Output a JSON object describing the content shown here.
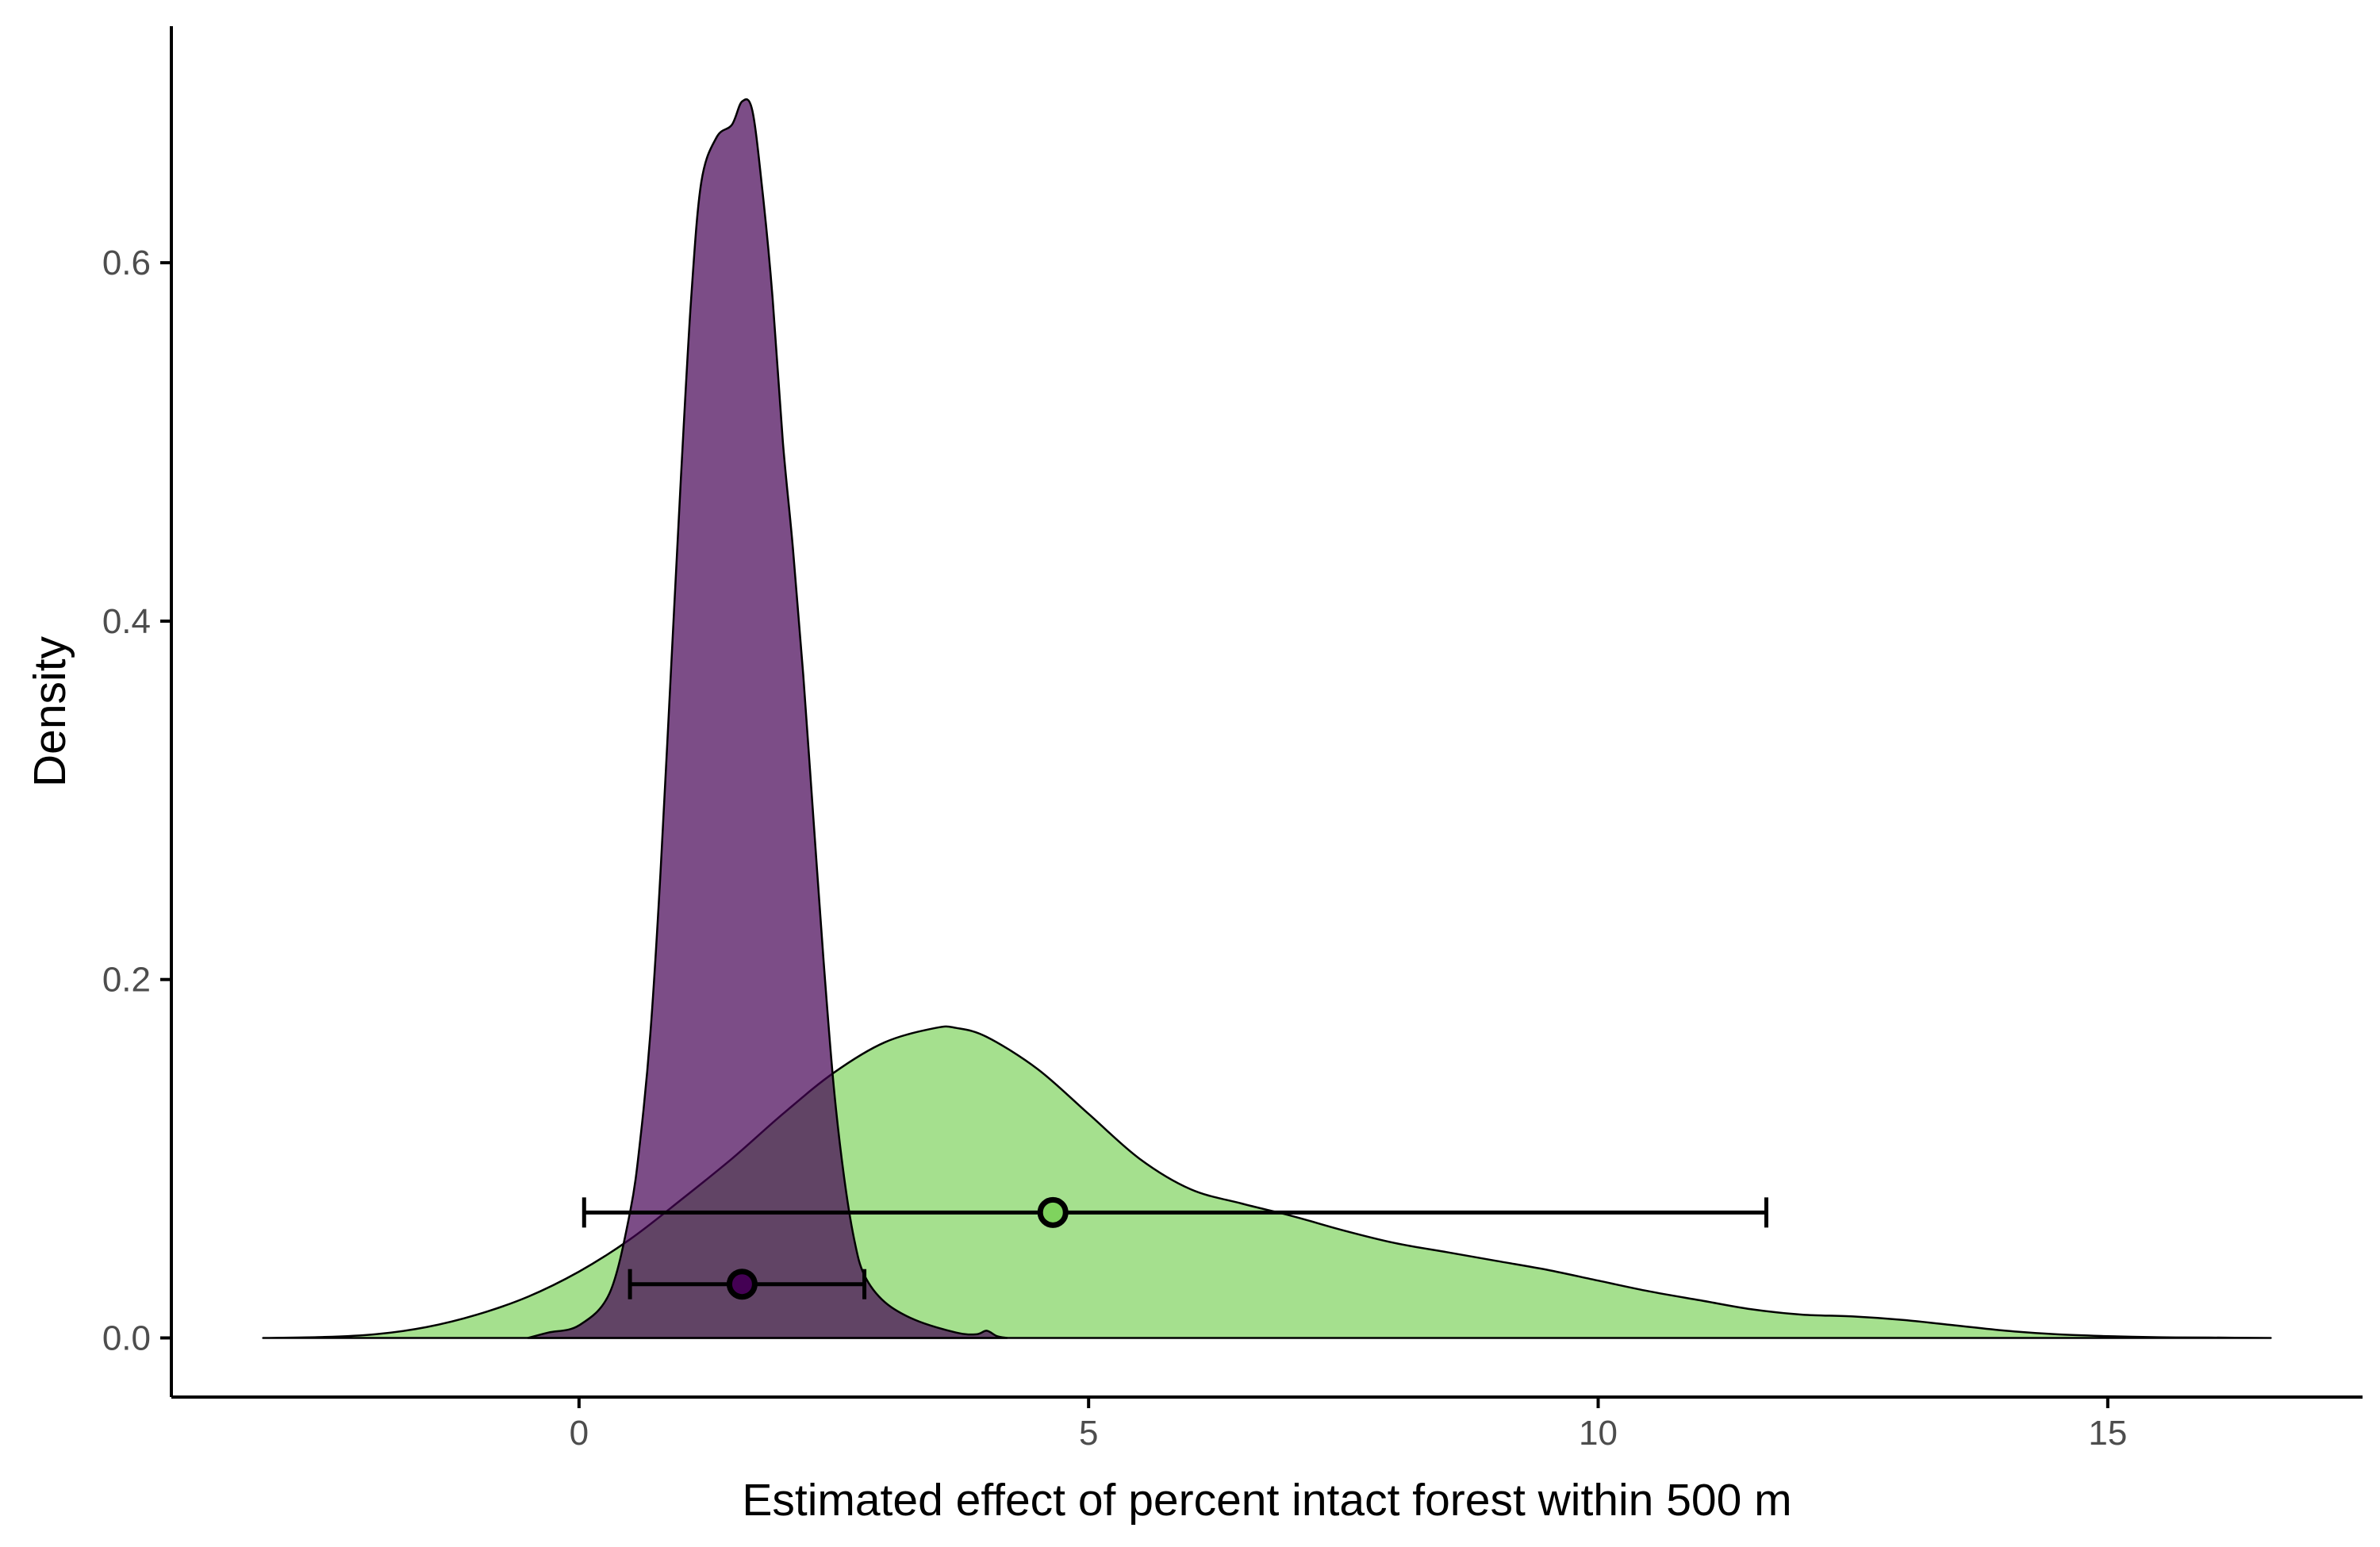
{
  "chart_data": {
    "type": "area",
    "title": "",
    "xlabel": "Estimated effect of percent intact forest within 500 m",
    "ylabel": "Density",
    "xlim": [
      -4.0,
      17.5
    ],
    "ylim": [
      -0.033,
      0.732
    ],
    "x_ticks": [
      0,
      5,
      10,
      15
    ],
    "x_tick_labels": [
      "0",
      "5",
      "10",
      "15"
    ],
    "y_ticks": [
      0.0,
      0.2,
      0.4,
      0.6
    ],
    "y_tick_labels": [
      "0.0",
      "0.2",
      "0.4",
      "0.6"
    ],
    "grid": false,
    "legend": "none",
    "series": [
      {
        "color": "#7fd35e",
        "fill_opacity": 0.7,
        "density": [
          [
            -3.1,
            0.0
          ],
          [
            -2.5,
            0.0005
          ],
          [
            -2.0,
            0.002
          ],
          [
            -1.5,
            0.006
          ],
          [
            -1.0,
            0.013
          ],
          [
            -0.5,
            0.023
          ],
          [
            0.0,
            0.037
          ],
          [
            0.5,
            0.055
          ],
          [
            1.0,
            0.077
          ],
          [
            1.5,
            0.1
          ],
          [
            2.0,
            0.125
          ],
          [
            2.5,
            0.148
          ],
          [
            3.0,
            0.165
          ],
          [
            3.5,
            0.173
          ],
          [
            3.7,
            0.173
          ],
          [
            4.0,
            0.168
          ],
          [
            4.5,
            0.15
          ],
          [
            5.0,
            0.125
          ],
          [
            5.5,
            0.1
          ],
          [
            6.0,
            0.083
          ],
          [
            6.5,
            0.075
          ],
          [
            7.0,
            0.068
          ],
          [
            7.5,
            0.06
          ],
          [
            8.0,
            0.053
          ],
          [
            8.5,
            0.048
          ],
          [
            9.0,
            0.043
          ],
          [
            9.5,
            0.038
          ],
          [
            10.0,
            0.032
          ],
          [
            10.5,
            0.026
          ],
          [
            11.0,
            0.021
          ],
          [
            11.5,
            0.016
          ],
          [
            12.0,
            0.013
          ],
          [
            12.5,
            0.012
          ],
          [
            13.0,
            0.01
          ],
          [
            13.5,
            0.007
          ],
          [
            14.0,
            0.004
          ],
          [
            14.5,
            0.002
          ],
          [
            15.0,
            0.001
          ],
          [
            15.5,
            0.0004
          ],
          [
            16.0,
            0.0002
          ],
          [
            16.6,
            0.0
          ]
        ],
        "point_estimate": 4.65,
        "interval": [
          0.05,
          11.65
        ],
        "interval_y": 0.07
      },
      {
        "color": "#440154",
        "fill_opacity": 0.7,
        "density": [
          [
            -0.5,
            0.0
          ],
          [
            -0.3,
            0.003
          ],
          [
            0.0,
            0.007
          ],
          [
            0.3,
            0.025
          ],
          [
            0.5,
            0.07
          ],
          [
            0.6,
            0.11
          ],
          [
            0.7,
            0.17
          ],
          [
            0.8,
            0.26
          ],
          [
            0.9,
            0.37
          ],
          [
            1.0,
            0.48
          ],
          [
            1.1,
            0.58
          ],
          [
            1.2,
            0.645
          ],
          [
            1.35,
            0.67
          ],
          [
            1.5,
            0.677
          ],
          [
            1.6,
            0.69
          ],
          [
            1.7,
            0.685
          ],
          [
            1.8,
            0.64
          ],
          [
            1.9,
            0.58
          ],
          [
            2.0,
            0.5
          ],
          [
            2.1,
            0.44
          ],
          [
            2.2,
            0.37
          ],
          [
            2.3,
            0.29
          ],
          [
            2.4,
            0.21
          ],
          [
            2.5,
            0.14
          ],
          [
            2.6,
            0.09
          ],
          [
            2.7,
            0.055
          ],
          [
            2.8,
            0.035
          ],
          [
            3.0,
            0.02
          ],
          [
            3.3,
            0.01
          ],
          [
            3.7,
            0.003
          ],
          [
            3.9,
            0.002
          ],
          [
            4.0,
            0.004
          ],
          [
            4.1,
            0.001
          ],
          [
            4.2,
            0.0
          ]
        ],
        "point_estimate": 1.6,
        "interval": [
          0.5,
          2.8
        ],
        "interval_y": 0.03
      }
    ]
  }
}
